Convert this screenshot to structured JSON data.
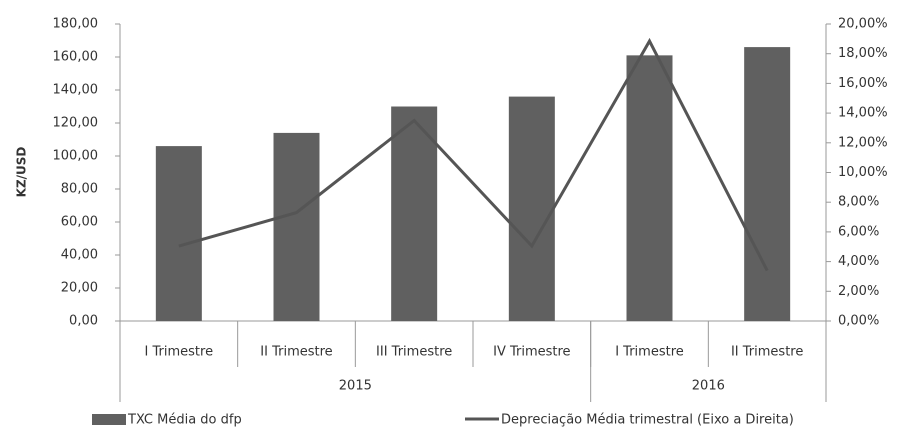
{
  "chart_data": {
    "type": "bar-line",
    "y_label": "KZ/USD",
    "categories": [
      "I Trimestre",
      "II Trimestre",
      "III Trimestre",
      "IV Trimestre",
      "I Trimestre",
      "II Trimestre"
    ],
    "groups": [
      {
        "name": "2015",
        "count": 4
      },
      {
        "name": "2016",
        "count": 2
      }
    ],
    "series": [
      {
        "name": "TXC Média do dfp",
        "color": "#606060",
        "kind": "bar",
        "values": [
          106,
          114,
          130,
          136,
          161,
          166
        ]
      },
      {
        "name": "Depreciação Média trimestral (Eixo a Direita)",
        "color": "#555555",
        "kind": "line",
        "axis": "y2",
        "values": [
          5.05,
          7.3,
          13.5,
          5.05,
          18.85,
          3.4
        ]
      }
    ],
    "ylim": [
      0,
      180
    ],
    "yticks": [
      {
        "value": 0,
        "label": "0,00"
      },
      {
        "value": 20,
        "label": "20,00"
      },
      {
        "value": 40,
        "label": "40,00"
      },
      {
        "value": 60,
        "label": "60,00"
      },
      {
        "value": 80,
        "label": "80,00"
      },
      {
        "value": 100,
        "label": "100,00"
      },
      {
        "value": 120,
        "label": "120,00"
      },
      {
        "value": 140,
        "label": "140,00"
      },
      {
        "value": 160,
        "label": "160,00"
      },
      {
        "value": 180,
        "label": "180,00"
      }
    ],
    "y2lim": [
      0,
      20
    ],
    "y2ticks": [
      {
        "value": 0,
        "label": "0,00%"
      },
      {
        "value": 2,
        "label": "2,00%"
      },
      {
        "value": 4,
        "label": "4,00%"
      },
      {
        "value": 6,
        "label": "6,00%"
      },
      {
        "value": 8,
        "label": "8,00%"
      },
      {
        "value": 10,
        "label": "10,00%"
      },
      {
        "value": 12,
        "label": "12,00%"
      },
      {
        "value": 14,
        "label": "14,00%"
      },
      {
        "value": 16,
        "label": "16,00%"
      },
      {
        "value": 18,
        "label": "18,00%"
      },
      {
        "value": 20,
        "label": "20,00%"
      }
    ]
  }
}
